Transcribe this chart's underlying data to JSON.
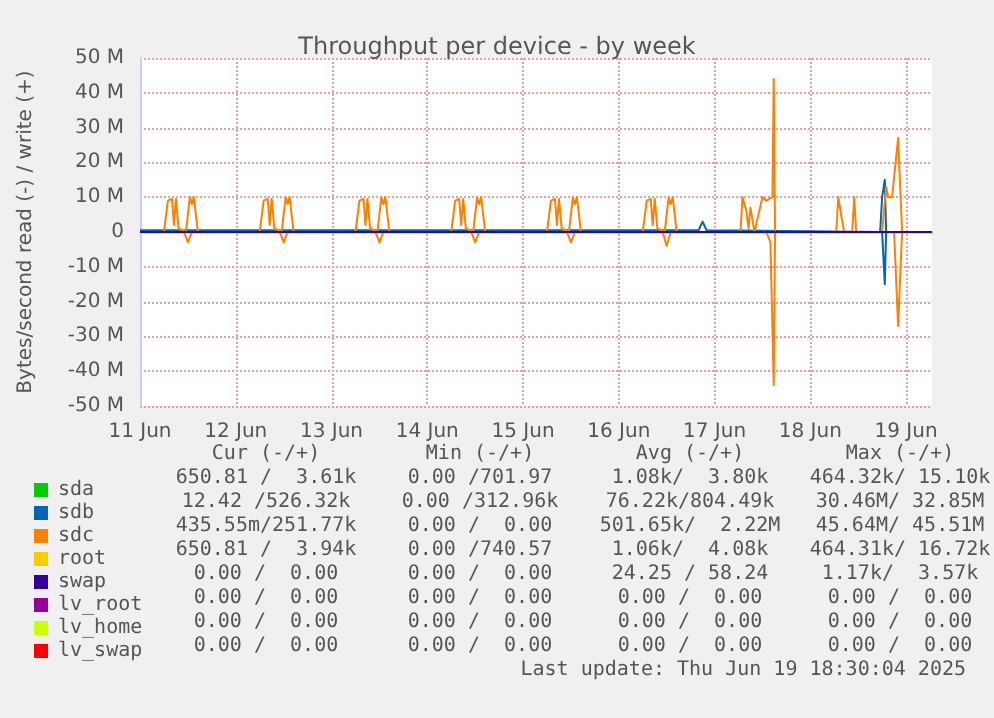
{
  "chart_data": {
    "type": "line",
    "title": "Throughput per device - by week",
    "ylabel": "Bytes/second read (-) / write (+)",
    "xlim": [
      "2025-06-11T00:00",
      "2025-06-19T06:30"
    ],
    "xticks": [
      {
        "value": "2025-06-11T00:00",
        "label": "11 Jun"
      },
      {
        "value": "2025-06-12T00:00",
        "label": "12 Jun"
      },
      {
        "value": "2025-06-13T00:00",
        "label": "13 Jun"
      },
      {
        "value": "2025-06-14T00:00",
        "label": "14 Jun"
      },
      {
        "value": "2025-06-15T00:00",
        "label": "15 Jun"
      },
      {
        "value": "2025-06-16T00:00",
        "label": "16 Jun"
      },
      {
        "value": "2025-06-17T00:00",
        "label": "17 Jun"
      },
      {
        "value": "2025-06-18T00:00",
        "label": "18 Jun"
      },
      {
        "value": "2025-06-19T00:00",
        "label": "19 Jun"
      }
    ],
    "ylim": [
      -50,
      50
    ],
    "yticks": [
      {
        "value": -50,
        "label": "-50 M"
      },
      {
        "value": -40,
        "label": "-40 M"
      },
      {
        "value": -30,
        "label": "-30 M"
      },
      {
        "value": -20,
        "label": "-20 M"
      },
      {
        "value": -10,
        "label": "-10 M"
      },
      0,
      {
        "value": 10,
        "label": "10 M"
      },
      {
        "value": 20,
        "label": "20 M"
      },
      {
        "value": 30,
        "label": "30 M"
      },
      {
        "value": 40,
        "label": "40 M"
      },
      {
        "value": 50,
        "label": "50 M"
      }
    ],
    "grid": true,
    "legend": "bottom left",
    "marker": "none",
    "line_style": "solid",
    "series": [
      {
        "name": "sda",
        "color": "#00cc00"
      },
      {
        "name": "sdb",
        "color": "#0066b3",
        "x": [
          "2025-06-11T00:00",
          "2025-06-16T20:00",
          "2025-06-16T21:00",
          "2025-06-16T22:00",
          "2025-06-18T17:30",
          "2025-06-18T18:00",
          "2025-06-18T18:40",
          "2025-06-18T19:00",
          "2025-06-19T06:30"
        ],
        "values": [
          0.5,
          0.5,
          3,
          0.5,
          0,
          10,
          15,
          0,
          0
        ]
      },
      {
        "color": "#0066b3",
        "x": [
          "2025-06-11T00:00",
          "2025-06-18T18:00",
          "2025-06-18T18:40",
          "2025-06-18T19:00",
          "2025-06-19T06:30"
        ],
        "values": [
          0,
          0,
          -15,
          0,
          0
        ]
      },
      {
        "name": "sdc",
        "color": "#ff8000",
        "x": [
          "2025-06-11T00:00",
          "2025-06-11T06:00",
          "2025-06-11T07:00",
          "2025-06-11T08:00",
          "2025-06-11T08:30",
          "2025-06-11T09:00",
          "2025-06-11T09:40",
          "2025-06-11T11:30",
          "2025-06-11T12:30",
          "2025-06-11T13:00",
          "2025-06-11T13:30",
          "2025-06-11T14:30",
          "2025-06-12T06:00",
          "2025-06-12T07:00",
          "2025-06-12T08:00",
          "2025-06-12T08:30",
          "2025-06-12T09:00",
          "2025-06-12T09:40",
          "2025-06-12T11:30",
          "2025-06-12T12:30",
          "2025-06-12T13:00",
          "2025-06-12T13:30",
          "2025-06-12T14:30",
          "2025-06-13T06:00",
          "2025-06-13T07:00",
          "2025-06-13T08:00",
          "2025-06-13T08:30",
          "2025-06-13T09:00",
          "2025-06-13T09:40",
          "2025-06-13T11:30",
          "2025-06-13T12:30",
          "2025-06-13T13:00",
          "2025-06-13T13:30",
          "2025-06-13T14:30",
          "2025-06-14T06:00",
          "2025-06-14T07:00",
          "2025-06-14T08:00",
          "2025-06-14T08:30",
          "2025-06-14T09:00",
          "2025-06-14T09:40",
          "2025-06-14T11:30",
          "2025-06-14T12:30",
          "2025-06-14T13:00",
          "2025-06-14T13:30",
          "2025-06-14T14:30",
          "2025-06-15T06:00",
          "2025-06-15T07:00",
          "2025-06-15T08:00",
          "2025-06-15T08:30",
          "2025-06-15T09:00",
          "2025-06-15T09:40",
          "2025-06-15T11:30",
          "2025-06-15T12:30",
          "2025-06-15T13:00",
          "2025-06-15T13:30",
          "2025-06-15T14:30",
          "2025-06-16T06:00",
          "2025-06-16T07:00",
          "2025-06-16T08:00",
          "2025-06-16T08:30",
          "2025-06-16T09:00",
          "2025-06-16T09:40",
          "2025-06-16T11:30",
          "2025-06-16T12:30",
          "2025-06-16T13:00",
          "2025-06-16T13:30",
          "2025-06-16T14:30",
          "2025-06-17T06:30",
          "2025-06-17T07:00",
          "2025-06-17T08:00",
          "2025-06-17T08:30",
          "2025-06-17T09:00",
          "2025-06-17T10:00",
          "2025-06-17T11:00",
          "2025-06-17T12:00",
          "2025-06-17T13:00",
          "2025-06-17T14:30",
          "2025-06-17T14:50",
          "2025-06-17T15:10",
          "2025-06-18T06:30",
          "2025-06-18T07:00",
          "2025-06-18T08:00",
          "2025-06-18T08:30",
          "2025-06-18T10:30",
          "2025-06-18T11:00",
          "2025-06-18T11:30",
          "2025-06-18T18:00",
          "2025-06-18T19:00",
          "2025-06-18T19:30",
          "2025-06-18T20:30",
          "2025-06-18T22:00",
          "2025-06-18T23:00",
          "2025-06-19T06:30"
        ],
        "values": [
          0,
          0,
          9,
          9.5,
          2,
          9.5,
          1,
          0,
          10,
          8,
          10,
          0,
          0,
          9,
          9.5,
          2,
          9.5,
          1,
          0,
          10,
          8,
          10,
          0,
          0,
          9,
          9.5,
          2,
          9.5,
          1,
          0,
          10,
          8,
          10,
          0,
          0,
          9,
          9.5,
          2,
          9.5,
          1,
          0,
          10,
          8,
          10,
          0,
          0,
          9,
          9.5,
          2,
          9.5,
          1,
          0,
          10,
          8,
          10,
          0,
          0,
          9,
          9.5,
          2,
          9.5,
          1,
          0,
          10,
          8,
          10,
          0,
          0,
          10,
          6,
          1,
          7,
          0,
          5,
          10,
          9,
          10,
          44,
          0,
          0,
          10,
          3,
          0,
          0,
          10,
          0,
          0,
          13,
          10,
          10,
          27,
          0,
          0
        ]
      },
      {
        "color": "#ff8000",
        "x": [
          "2025-06-11T00:00",
          "2025-06-11T11:00",
          "2025-06-11T12:00",
          "2025-06-11T13:00",
          "2025-06-12T11:00",
          "2025-06-12T12:00",
          "2025-06-12T13:00",
          "2025-06-13T11:00",
          "2025-06-13T12:00",
          "2025-06-13T13:00",
          "2025-06-14T11:00",
          "2025-06-14T12:00",
          "2025-06-14T13:00",
          "2025-06-15T11:00",
          "2025-06-15T12:00",
          "2025-06-15T13:00",
          "2025-06-16T11:00",
          "2025-06-16T12:00",
          "2025-06-16T13:00",
          "2025-06-17T13:00",
          "2025-06-17T14:00",
          "2025-06-17T14:50",
          "2025-06-17T15:10",
          "2025-06-18T21:00",
          "2025-06-18T22:00",
          "2025-06-18T23:00",
          "2025-06-19T06:30"
        ],
        "values": [
          0,
          0,
          -3,
          0,
          0,
          -3,
          0,
          0,
          -3,
          0,
          0,
          -3,
          0,
          0,
          -3,
          0,
          0,
          -4,
          0,
          0,
          -3,
          -44,
          0,
          0,
          -27,
          0,
          0
        ]
      },
      {
        "name": "root",
        "color": "#ffcc00"
      },
      {
        "name": "swap",
        "color": "#330099",
        "x": [
          "2025-06-11T00:00",
          "2025-06-19T06:30"
        ],
        "values": [
          0,
          0
        ]
      },
      {
        "name": "lv_root",
        "color": "#990099"
      },
      {
        "name": "lv_home",
        "color": "#ccff00"
      },
      {
        "name": "lv_swap",
        "color": "#ff0000"
      }
    ],
    "annotations": [
      "Cur (-/+)",
      "Min (-/+)",
      "Avg (-/+)",
      "Max (-/+)",
      "650.81 /  3.61k",
      "0.00 /701.97",
      "1.08k/  3.80k",
      "464.32k/ 15.10k",
      "12.42 /526.32k",
      "0.00 /312.96k",
      "76.22k/804.49k",
      "30.46M/ 32.85M",
      "435.55m/251.77k",
      "0.00 /  0.00",
      "501.65k/  2.22M",
      "45.64M/ 45.51M",
      "650.81 /  3.94k",
      "0.00 /740.57",
      "1.06k/  4.08k",
      "464.31k/ 16.72k",
      "0.00 /  0.00",
      "0.00 /  0.00",
      "24.25 / 58.24",
      "1.17k/  3.57k",
      "0.00 /  0.00",
      "0.00 /  0.00",
      "0.00 /  0.00",
      "0.00 /  0.00",
      "0.00 /  0.00",
      "0.00 /  0.00",
      "0.00 /  0.00",
      "0.00 /  0.00",
      "0.00 /  0.00",
      "0.00 /  0.00",
      "0.00 /  0.00",
      "0.00 /  0.00",
      "Last update: Thu Jun 19 18:30:04 2025"
    ]
  }
}
